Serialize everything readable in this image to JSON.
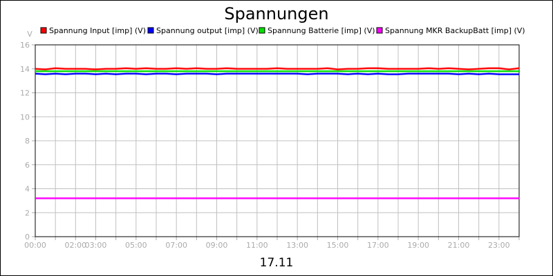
{
  "chart_data": {
    "type": "line",
    "title": "Spannungen",
    "ylabel": "V",
    "xlabel": "17.11",
    "ylim": [
      0,
      16
    ],
    "yticks": [
      0,
      2,
      4,
      6,
      8,
      10,
      12,
      14,
      16
    ],
    "xlim_hours": [
      0,
      24
    ],
    "xtick_labels": [
      {
        "hour": 0,
        "label": "00:00"
      },
      {
        "hour": 2,
        "label": "02:00"
      },
      {
        "hour": 3,
        "label": "03:00"
      },
      {
        "hour": 5,
        "label": "05:00"
      },
      {
        "hour": 7,
        "label": "07:00"
      },
      {
        "hour": 9,
        "label": "09:00"
      },
      {
        "hour": 11,
        "label": "11:00"
      },
      {
        "hour": 13,
        "label": "13:00"
      },
      {
        "hour": 15,
        "label": "15:00"
      },
      {
        "hour": 17,
        "label": "17:00"
      },
      {
        "hour": 19,
        "label": "19:00"
      },
      {
        "hour": 21,
        "label": "21:00"
      },
      {
        "hour": 23,
        "label": "23:00"
      }
    ],
    "grid": true,
    "legend_placement": "top",
    "x_step_hours": 0.5,
    "series": [
      {
        "name": "Spannung Input [imp] (V)",
        "color": "#ff0000",
        "values": [
          14.0,
          13.95,
          14.05,
          14.0,
          14.0,
          14.0,
          13.95,
          14.0,
          14.0,
          14.05,
          14.0,
          14.05,
          14.0,
          14.0,
          14.05,
          14.0,
          14.05,
          14.0,
          14.0,
          14.05,
          14.0,
          14.0,
          14.0,
          14.0,
          14.05,
          14.0,
          14.0,
          14.0,
          14.0,
          14.05,
          13.95,
          14.0,
          14.0,
          14.05,
          14.05,
          14.0,
          14.0,
          14.0,
          14.0,
          14.05,
          14.0,
          14.05,
          14.0,
          13.95,
          14.0,
          14.05,
          14.05,
          13.95,
          14.05
        ]
      },
      {
        "name": "Spannung output [imp] (V)",
        "color": "#0000ff",
        "values": [
          13.6,
          13.55,
          13.6,
          13.55,
          13.6,
          13.6,
          13.55,
          13.6,
          13.55,
          13.6,
          13.6,
          13.55,
          13.6,
          13.6,
          13.55,
          13.6,
          13.6,
          13.6,
          13.55,
          13.6,
          13.6,
          13.6,
          13.6,
          13.6,
          13.6,
          13.6,
          13.6,
          13.55,
          13.6,
          13.6,
          13.6,
          13.55,
          13.6,
          13.55,
          13.6,
          13.55,
          13.55,
          13.6,
          13.6,
          13.6,
          13.6,
          13.6,
          13.55,
          13.6,
          13.55,
          13.6,
          13.55,
          13.55,
          13.55
        ]
      },
      {
        "name": "Spannung Batterie [imp] (V)",
        "color": "#00e000",
        "values": [
          13.8,
          13.8,
          13.8,
          13.8,
          13.8,
          13.8,
          13.8,
          13.8,
          13.8,
          13.8,
          13.8,
          13.8,
          13.8,
          13.8,
          13.8,
          13.8,
          13.8,
          13.8,
          13.8,
          13.8,
          13.8,
          13.8,
          13.8,
          13.8,
          13.8,
          13.8,
          13.8,
          13.8,
          13.8,
          13.8,
          13.8,
          13.8,
          13.8,
          13.8,
          13.8,
          13.8,
          13.8,
          13.8,
          13.8,
          13.8,
          13.8,
          13.8,
          13.8,
          13.8,
          13.8,
          13.8,
          13.8,
          13.8,
          13.8
        ]
      },
      {
        "name": "Spannung MKR BackupBatt [imp] (V)",
        "color": "#ff00ff",
        "values": [
          3.2,
          3.2,
          3.2,
          3.2,
          3.2,
          3.2,
          3.2,
          3.2,
          3.2,
          3.2,
          3.2,
          3.2,
          3.2,
          3.2,
          3.2,
          3.2,
          3.2,
          3.2,
          3.2,
          3.2,
          3.2,
          3.2,
          3.2,
          3.2,
          3.2,
          3.2,
          3.2,
          3.2,
          3.2,
          3.2,
          3.2,
          3.2,
          3.2,
          3.2,
          3.2,
          3.2,
          3.2,
          3.2,
          3.2,
          3.2,
          3.2,
          3.2,
          3.2,
          3.2,
          3.2,
          3.2,
          3.2,
          3.2,
          3.2
        ]
      }
    ]
  }
}
